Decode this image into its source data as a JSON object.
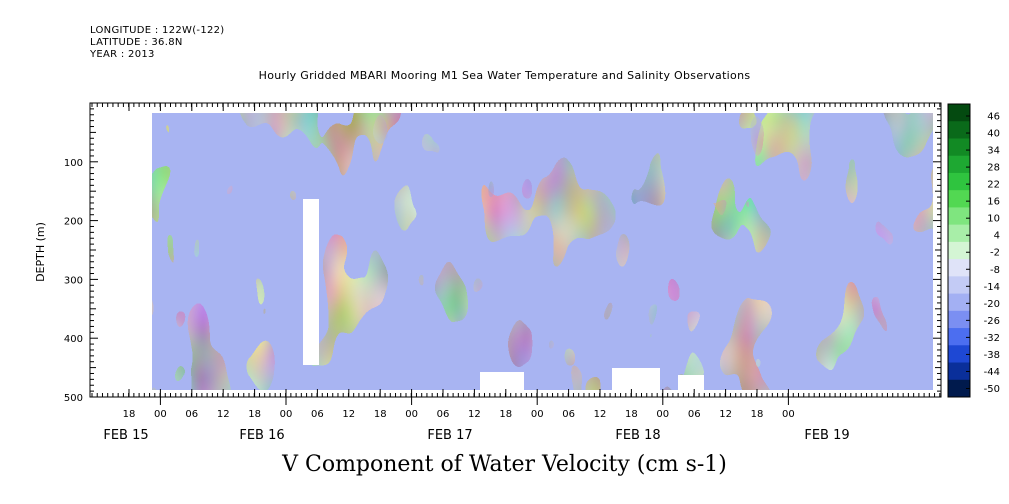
{
  "header": {
    "longitude": "LONGITUDE : 122W(-122)",
    "latitude": "LATITUDE : 36.8N",
    "year": "YEAR : 2013"
  },
  "chart_data": {
    "type": "heatmap",
    "title": "Hourly Gridded MBARI Mooring M1 Sea Water Temperature and Salinity Observations",
    "xlabel": "V Component of Water Velocity (cm s-1)",
    "ylabel": "DEPTH (m)",
    "ylim": [
      500,
      0
    ],
    "y_ticks": [
      100,
      200,
      300,
      400,
      500
    ],
    "x_hour_ticks": [
      "18",
      "00",
      "06",
      "12",
      "18",
      "00",
      "06",
      "12",
      "18",
      "00",
      "06",
      "12",
      "18",
      "00",
      "06",
      "12",
      "18",
      "00",
      "06",
      "12",
      "18",
      "00"
    ],
    "x_date_labels": [
      "FEB 15",
      "FEB 16",
      "FEB 17",
      "FEB 18",
      "FEB 19"
    ],
    "colorbar_levels": [
      "46",
      "40",
      "34",
      "28",
      "22",
      "16",
      "10",
      "4",
      "-2",
      "-8",
      "-14",
      "-20",
      "-26",
      "-32",
      "-38",
      "-44",
      "-50"
    ],
    "colorscale": [
      "#001a4d",
      "#0a2f9a",
      "#1e48d4",
      "#4c6ef0",
      "#7b8ff2",
      "#a3b0f3",
      "#c3cbf5",
      "#dfe3f8",
      "#d4f5d4",
      "#a8eea8",
      "#7fe57f",
      "#52d852",
      "#2fc43f",
      "#1ea832",
      "#128a24",
      "#0a6a1a",
      "#044a10"
    ],
    "field_dominant_colors": {
      "negative": "#a8b4f2",
      "positive": "#78e278"
    }
  }
}
